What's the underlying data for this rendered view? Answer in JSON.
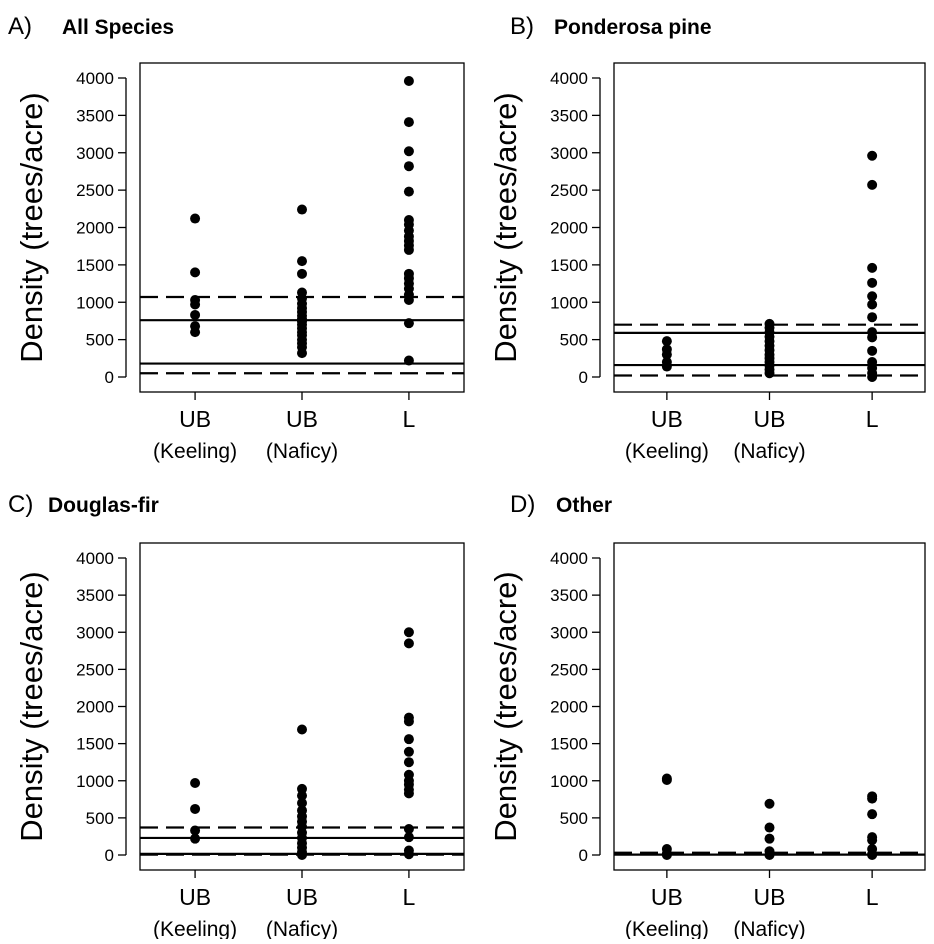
{
  "figure": {
    "background": "#ffffff",
    "ink": "#000000"
  },
  "chart_data": [
    {
      "type": "scatter",
      "panel_letter": "A)",
      "title": "All Species",
      "ylabel": "Density (trees/acre)",
      "xlabel": "",
      "ylim": [
        0,
        4000
      ],
      "yticks": [
        "0",
        "500",
        "1000",
        "1500",
        "2000",
        "2500",
        "3000",
        "3500",
        "4000"
      ],
      "categories": [
        {
          "label": "UB",
          "sublabel": "(Keeling)"
        },
        {
          "label": "UB",
          "sublabel": "(Naficy)"
        },
        {
          "label": "L",
          "sublabel": ""
        }
      ],
      "series": [
        {
          "values": [
            [
              2120,
              1400,
              1030,
              970,
              830,
              680,
              600
            ],
            [
              2240,
              1550,
              1380,
              1130,
              1050,
              980,
              920,
              870,
              820,
              780,
              740,
              700,
              650,
              600,
              560,
              500,
              450,
              400,
              320
            ],
            [
              3960,
              3410,
              3020,
              2820,
              2480,
              2100,
              2040,
              1960,
              1880,
              1820,
              1760,
              1700,
              1380,
              1320,
              1250,
              1180,
              1100,
              1030,
              720,
              220
            ]
          ]
        }
      ],
      "reference_lines": [
        {
          "style": "dashed",
          "y": 1070
        },
        {
          "style": "solid",
          "y": 760
        },
        {
          "style": "solid",
          "y": 180
        },
        {
          "style": "dashed",
          "y": 50
        }
      ],
      "grid": false
    },
    {
      "type": "scatter",
      "panel_letter": "B)",
      "title": "Ponderosa pine",
      "ylabel": "Density (trees/acre)",
      "xlabel": "",
      "ylim": [
        0,
        4000
      ],
      "yticks": [
        "0",
        "500",
        "1000",
        "1500",
        "2000",
        "2500",
        "3000",
        "3500",
        "4000"
      ],
      "categories": [
        {
          "label": "UB",
          "sublabel": "(Keeling)"
        },
        {
          "label": "UB",
          "sublabel": "(Naficy)"
        },
        {
          "label": "L",
          "sublabel": ""
        }
      ],
      "series": [
        {
          "values": [
            [
              480,
              370,
              300,
              200,
              140
            ],
            [
              710,
              660,
              600,
              540,
              480,
              420,
              360,
              300,
              250,
              200,
              150,
              100,
              50
            ],
            [
              2960,
              2570,
              1460,
              1260,
              1080,
              970,
              800,
              600,
              530,
              350,
              200,
              120,
              50,
              0
            ]
          ]
        }
      ],
      "reference_lines": [
        {
          "style": "dashed",
          "y": 700
        },
        {
          "style": "solid",
          "y": 590
        },
        {
          "style": "solid",
          "y": 160
        },
        {
          "style": "dashed",
          "y": 20
        }
      ],
      "grid": false
    },
    {
      "type": "scatter",
      "panel_letter": "C)",
      "title": "Douglas-fir",
      "ylabel": "Density (trees/acre)",
      "xlabel": "",
      "ylim": [
        0,
        4000
      ],
      "yticks": [
        "0",
        "500",
        "1000",
        "1500",
        "2000",
        "2500",
        "3000",
        "3500",
        "4000"
      ],
      "categories": [
        {
          "label": "UB",
          "sublabel": "(Keeling)"
        },
        {
          "label": "UB",
          "sublabel": "(Naficy)"
        },
        {
          "label": "L",
          "sublabel": ""
        }
      ],
      "series": [
        {
          "values": [
            [
              970,
              620,
              330,
              220
            ],
            [
              1690,
              890,
              800,
              700,
              600,
              520,
              450,
              380,
              300,
              230,
              160,
              100,
              40,
              0
            ],
            [
              3000,
              2850,
              1850,
              1800,
              1560,
              1390,
              1250,
              1080,
              1000,
              950,
              880,
              830,
              350,
              240,
              60,
              10
            ]
          ]
        }
      ],
      "reference_lines": [
        {
          "style": "dashed",
          "y": 370
        },
        {
          "style": "solid",
          "y": 230
        },
        {
          "style": "solid",
          "y": 15
        },
        {
          "style": "dashed",
          "y": 5
        }
      ],
      "grid": false
    },
    {
      "type": "scatter",
      "panel_letter": "D)",
      "title": "Other",
      "ylabel": "Density (trees/acre)",
      "xlabel": "",
      "ylim": [
        0,
        4000
      ],
      "yticks": [
        "0",
        "500",
        "1000",
        "1500",
        "2000",
        "2500",
        "3000",
        "3500",
        "4000"
      ],
      "categories": [
        {
          "label": "UB",
          "sublabel": "(Keeling)"
        },
        {
          "label": "UB",
          "sublabel": "(Naficy)"
        },
        {
          "label": "L",
          "sublabel": ""
        }
      ],
      "series": [
        {
          "values": [
            [
              1030,
              1010,
              80,
              20,
              0
            ],
            [
              690,
              370,
              220,
              50,
              0
            ],
            [
              790,
              760,
              550,
              240,
              200,
              80,
              10,
              0
            ]
          ]
        }
      ],
      "reference_lines": [
        {
          "style": "dashed",
          "y": 30
        },
        {
          "style": "solid",
          "y": 5
        }
      ],
      "grid": false
    }
  ]
}
